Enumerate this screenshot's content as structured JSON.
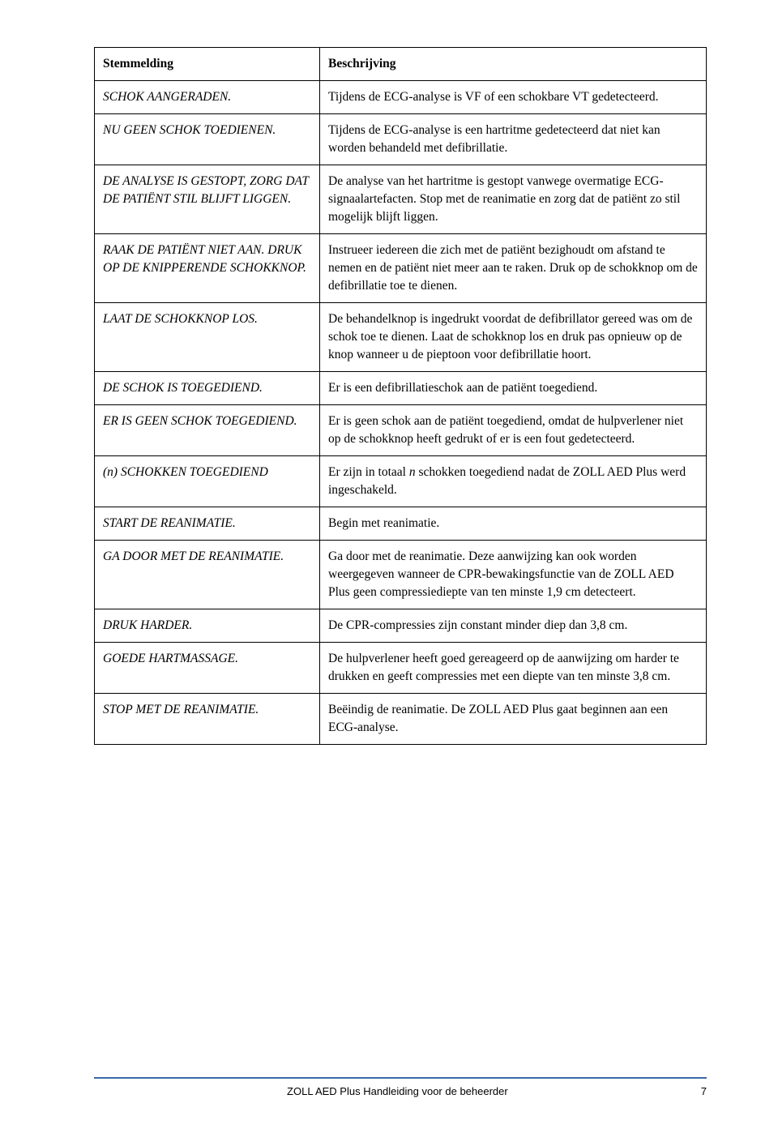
{
  "table": {
    "headers": {
      "left": "Stemmelding",
      "right": "Beschrijving"
    },
    "rows": [
      {
        "prompt": "SCHOK AANGERADEN.",
        "desc": "Tijdens de ECG-analyse is VF of een schokbare VT gedetecteerd."
      },
      {
        "prompt": "NU GEEN SCHOK TOEDIENEN.",
        "desc": "Tijdens de ECG-analyse is een hartritme gedetecteerd dat niet kan worden behandeld met defibrillatie."
      },
      {
        "prompt": "DE ANALYSE IS GESTOPT, ZORG DAT DE PATIËNT STIL BLIJFT LIGGEN.",
        "desc": "De analyse van het hartritme is gestopt vanwege overmatige ECG-signaalartefacten. Stop met de reanimatie en zorg dat de patiënt zo stil mogelijk blijft liggen."
      },
      {
        "prompt": "RAAK DE PATIËNT NIET AAN. DRUK OP DE KNIPPERENDE SCHOKKNOP.",
        "desc": "Instrueer iedereen die zich met de patiënt bezighoudt om afstand te nemen en de patiënt niet meer aan te raken. Druk op de schokknop om de defibrillatie toe te dienen."
      },
      {
        "prompt": "LAAT DE SCHOKKNOP LOS.",
        "desc": "De behandelknop is ingedrukt voordat de defibrillator gereed was om de schok toe te dienen. Laat de schokknop los en druk pas opnieuw op de knop wanneer u de pieptoon voor defibrillatie hoort."
      },
      {
        "prompt": "DE SCHOK IS TOEGEDIEND.",
        "desc": "Er is een defibrillatieschok aan de patiënt toegediend."
      },
      {
        "prompt": "ER IS GEEN SCHOK TOEGEDIEND.",
        "desc": "Er is geen schok aan de patiënt toegediend, omdat de hulpverlener niet op de schokknop heeft gedrukt of er is een fout gedetecteerd."
      },
      {
        "prompt": "(n) SCHOKKEN TOEGEDIEND",
        "desc_pre": "Er zijn in totaal ",
        "desc_em": "n",
        "desc_post": " schokken toegediend nadat de ZOLL AED Plus werd ingeschakeld."
      },
      {
        "prompt": "START DE REANIMATIE.",
        "desc": "Begin met reanimatie."
      },
      {
        "prompt": "GA DOOR MET DE REANIMATIE.",
        "desc": "Ga door met de reanimatie. Deze aanwijzing kan ook worden weergegeven wanneer de CPR-bewakingsfunctie van de ZOLL AED Plus geen compressiediepte van ten minste 1,9 cm detecteert."
      },
      {
        "prompt": "DRUK HARDER.",
        "desc": "De CPR-compressies zijn constant minder diep dan 3,8 cm."
      },
      {
        "prompt": "GOEDE HARTMASSAGE.",
        "desc": "De hulpverlener heeft goed gereageerd op de aanwijzing om harder te drukken en geeft compressies met een diepte van ten minste 3,8 cm."
      },
      {
        "prompt": "STOP MET DE REANIMATIE.",
        "desc": "Beëindig de reanimatie. De ZOLL AED Plus gaat beginnen aan een ECG-analyse."
      }
    ]
  },
  "footer": {
    "title": "ZOLL AED Plus Handleiding voor de beheerder",
    "page": "7"
  },
  "colors": {
    "footer_line": "#3a6aa8",
    "border": "#000000",
    "text": "#000000",
    "bg": "#ffffff"
  }
}
